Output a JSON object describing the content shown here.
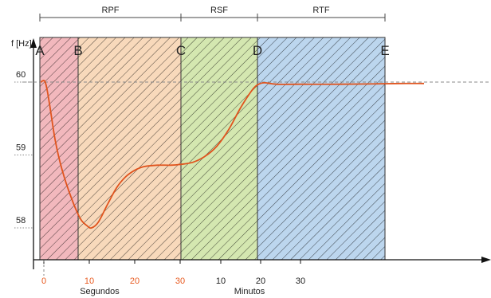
{
  "chart_data": {
    "type": "line",
    "ylabel": "f [Hz]",
    "yticks": [
      60,
      59,
      58
    ],
    "phases": [
      {
        "label": "RPF",
        "from": "A",
        "to": "C"
      },
      {
        "label": "RSF",
        "from": "C",
        "to": "D"
      },
      {
        "label": "RTF",
        "from": "D",
        "to": "E"
      }
    ],
    "point_labels": [
      "A",
      "B",
      "C",
      "D",
      "E"
    ],
    "regions": [
      {
        "from": "A",
        "to": "B",
        "color": "#f2b8bd"
      },
      {
        "from": "B",
        "to": "C",
        "color": "#f8d9bb"
      },
      {
        "from": "C",
        "to": "D",
        "color": "#d4e7b0"
      },
      {
        "from": "D",
        "to": "E",
        "color": "#bcd6ee"
      }
    ],
    "xticks_seconds": {
      "labels": [
        "0",
        "10",
        "20",
        "30"
      ],
      "color": "#e85a20"
    },
    "xticks_minutes": {
      "labels": [
        "10",
        "20",
        "30"
      ],
      "color": "#222222"
    },
    "xunit_seconds": "Segundos",
    "xunit_minutes": "Minutos",
    "series": [
      {
        "color": "#e0541e",
        "points": [
          {
            "seg": "sec",
            "x": -0.7,
            "y": 60.0
          },
          {
            "seg": "sec",
            "x": 0.3,
            "y": 60.0
          },
          {
            "seg": "sec",
            "x": 1.2,
            "y": 59.72
          },
          {
            "seg": "sec",
            "x": 2.5,
            "y": 59.2
          },
          {
            "seg": "sec",
            "x": 4.0,
            "y": 58.8
          },
          {
            "seg": "sec",
            "x": 6.0,
            "y": 58.42
          },
          {
            "seg": "sec",
            "x": 8.0,
            "y": 58.13
          },
          {
            "seg": "sec",
            "x": 9.5,
            "y": 58.03
          },
          {
            "seg": "sec",
            "x": 10.5,
            "y": 58.0
          },
          {
            "seg": "sec",
            "x": 12.0,
            "y": 58.08
          },
          {
            "seg": "sec",
            "x": 14.0,
            "y": 58.32
          },
          {
            "seg": "sec",
            "x": 16.0,
            "y": 58.55
          },
          {
            "seg": "sec",
            "x": 18.0,
            "y": 58.7
          },
          {
            "seg": "sec",
            "x": 20.0,
            "y": 58.79
          },
          {
            "seg": "sec",
            "x": 22.0,
            "y": 58.84
          },
          {
            "seg": "sec",
            "x": 25.0,
            "y": 58.86
          },
          {
            "seg": "sec",
            "x": 28.0,
            "y": 58.86
          },
          {
            "seg": "sec",
            "x": 30.0,
            "y": 58.87
          },
          {
            "seg": "min",
            "x": 3.0,
            "y": 58.9
          },
          {
            "seg": "min",
            "x": 6.0,
            "y": 58.98
          },
          {
            "seg": "min",
            "x": 9.0,
            "y": 59.12
          },
          {
            "seg": "min",
            "x": 12.0,
            "y": 59.35
          },
          {
            "seg": "min",
            "x": 15.0,
            "y": 59.65
          },
          {
            "seg": "min",
            "x": 18.0,
            "y": 59.9
          },
          {
            "seg": "min",
            "x": 19.5,
            "y": 59.97
          },
          {
            "seg": "min",
            "x": 21.0,
            "y": 59.99
          },
          {
            "seg": "min",
            "x": 24.0,
            "y": 59.97
          },
          {
            "seg": "min",
            "x": 30.0,
            "y": 59.97
          },
          {
            "seg": "min",
            "x": 40.0,
            "y": 59.97
          },
          {
            "seg": "min",
            "x": 55.0,
            "y": 59.98
          },
          {
            "seg": "min",
            "x": 61.0,
            "y": 59.98
          }
        ]
      }
    ],
    "reference_line": {
      "y": 60,
      "style": "dashed"
    },
    "grid": false,
    "legend": "none"
  }
}
